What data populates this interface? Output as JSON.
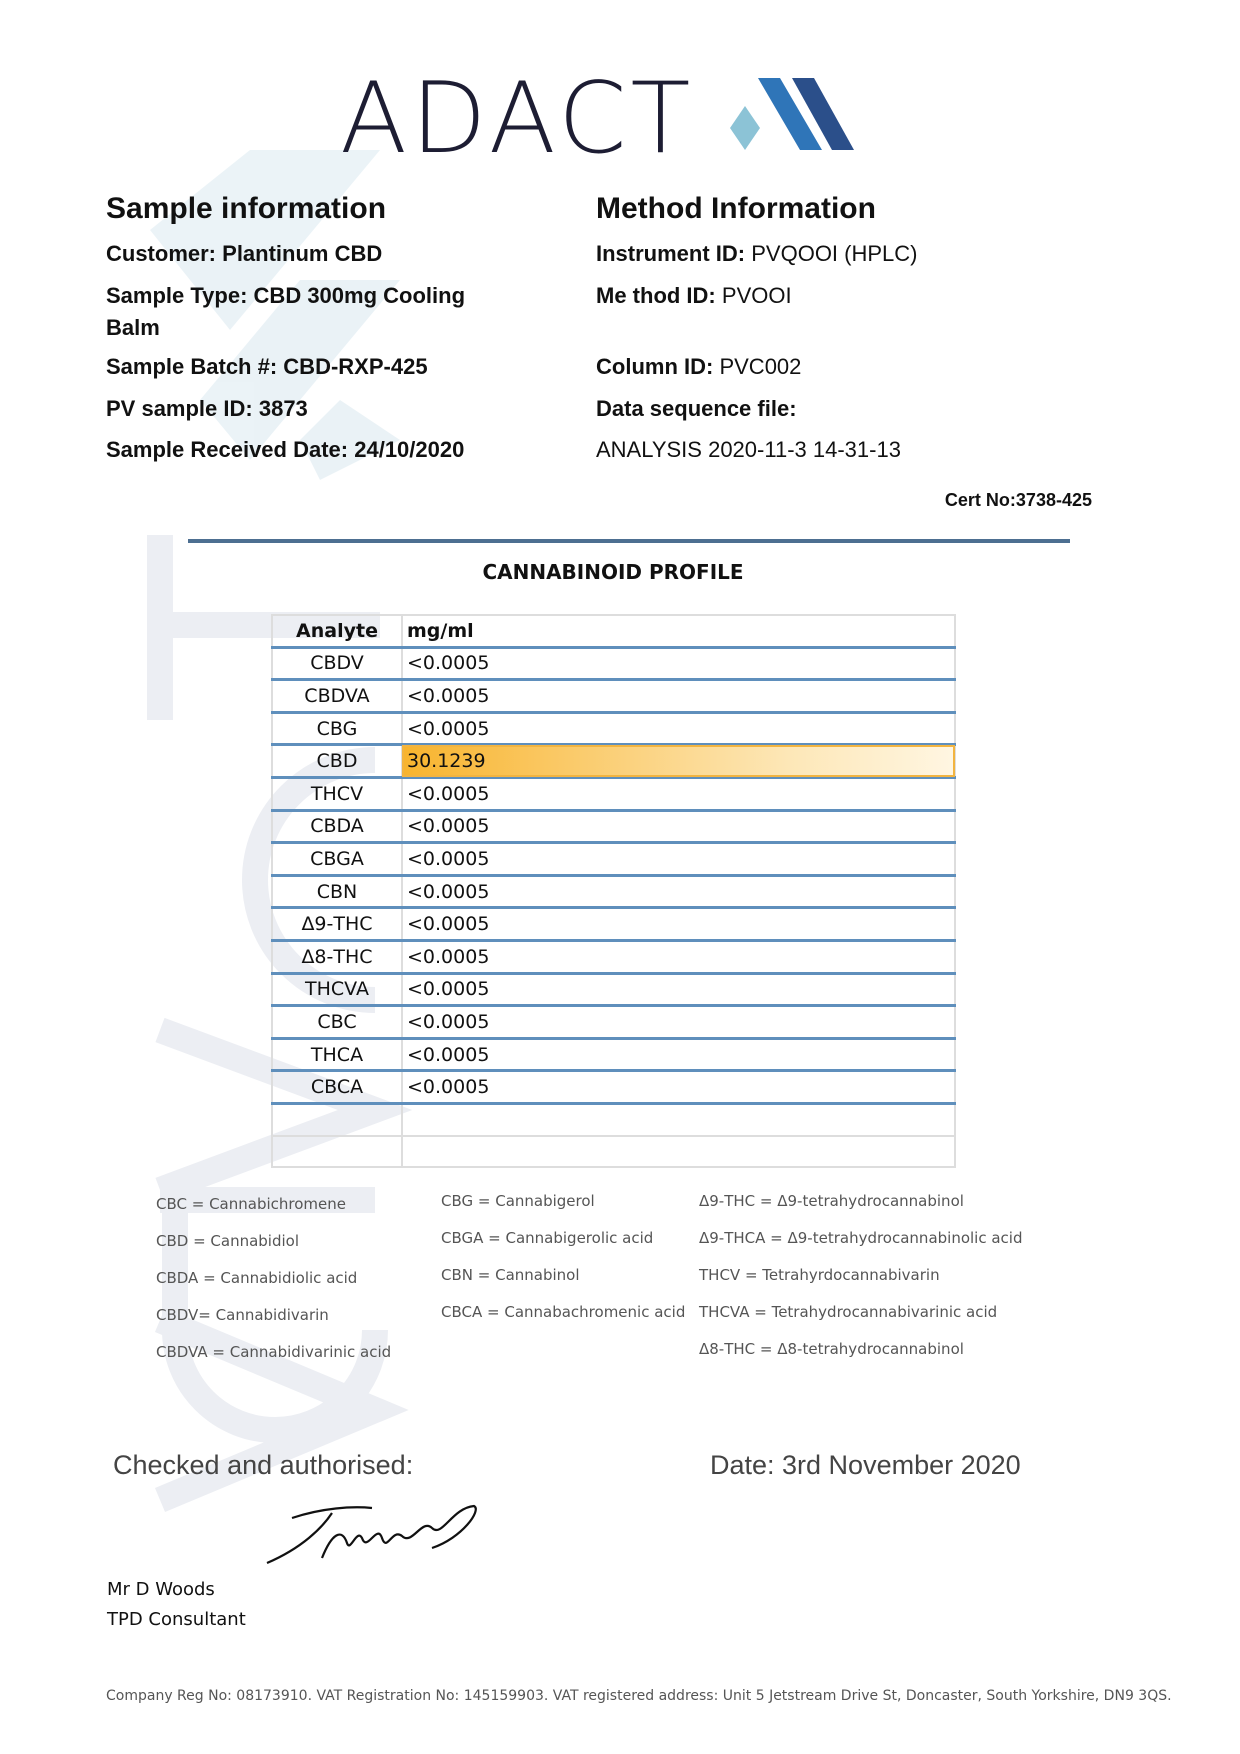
{
  "logo": {
    "text": "ADACT",
    "colors": [
      "#1d1d33",
      "#2f75b8",
      "#2b4f8a",
      "#8cc3d6"
    ]
  },
  "sample_info": {
    "heading": "Sample information",
    "fields": [
      {
        "label": "Customer:",
        "value": "Plantinum CBD"
      },
      {
        "label": "Sample Type:",
        "value": "CBD 300mg Cooling"
      },
      {
        "label": "",
        "value": "Balm"
      },
      {
        "label": "Sample Batch #:",
        "value": "CBD-RXP-425"
      },
      {
        "label": "PV sample ID:",
        "value": "3873"
      },
      {
        "label": "Sample Received Date:",
        "value": "24/10/2020"
      }
    ]
  },
  "method_info": {
    "heading": "Method Information",
    "fields": [
      {
        "label": "Instrument ID:",
        "value": "PVQOOI (HPLC)"
      },
      {
        "label": "Me thod ID:",
        "value": "PVOOI"
      },
      {
        "label": "Column ID:",
        "value": "PVC002"
      },
      {
        "label": "Data sequence file:",
        "value": ""
      },
      {
        "label": "",
        "value": "ANALYSIS 2020-11-3  14-31-13"
      }
    ]
  },
  "cert_no": "Cert No:3738-425",
  "profile": {
    "title": "CANNABINOID PROFILE",
    "headers": [
      "Analyte",
      "mg/ml"
    ],
    "highlight_color": "#f8b42e",
    "rows": [
      [
        "CBDV",
        "<0.0005"
      ],
      [
        "CBDVA",
        "<0.0005"
      ],
      [
        "CBG",
        "<0.0005"
      ],
      [
        "CBD",
        "30.1239"
      ],
      [
        "THCV",
        "<0.0005"
      ],
      [
        "CBDA",
        "<0.0005"
      ],
      [
        "CBGA",
        "<0.0005"
      ],
      [
        "CBN",
        "<0.0005"
      ],
      [
        "Δ9-THC",
        "<0.0005"
      ],
      [
        "Δ8-THC",
        "<0.0005"
      ],
      [
        "THCVA",
        "<0.0005"
      ],
      [
        "CBC",
        "<0.0005"
      ],
      [
        "THCA",
        "<0.0005"
      ],
      [
        "CBCA",
        "<0.0005"
      ]
    ]
  },
  "legend": [
    [
      "CBC = Cannabichromene",
      "CBD = Cannabidiol",
      "CBDA = Cannabidiolic acid",
      "CBDV= Cannabidivarin",
      "CBDVA = Cannabidivarinic acid"
    ],
    [
      "CBG = Cannabigerol",
      "CBGA = Cannabigerolic acid",
      "CBN = Cannabinol",
      "CBCA = Cannabachromenic acid"
    ],
    [
      "Δ9-THC = Δ9-tetrahydrocannabinol",
      "Δ9-THCA  = Δ9-tetrahydrocannabinolic acid",
      "THCV = Tetrahyrdocannabivarin",
      "THCVA = Tetrahydrocannabivarinic acid",
      "Δ8-THC = Δ8-tetrahydrocannabinol"
    ]
  ],
  "authorisation": {
    "checked_label": "Checked and authorised:",
    "date_label": "Date: 3rd November 2020",
    "name": "Mr D Woods",
    "role": "TPD Consultant"
  },
  "footer": "Company Reg No: 08173910. VAT Registration No: 145159903. VAT registered address: Unit 5 Jetstream Drive St, Doncaster, South Yorkshire, DN9 3QS."
}
